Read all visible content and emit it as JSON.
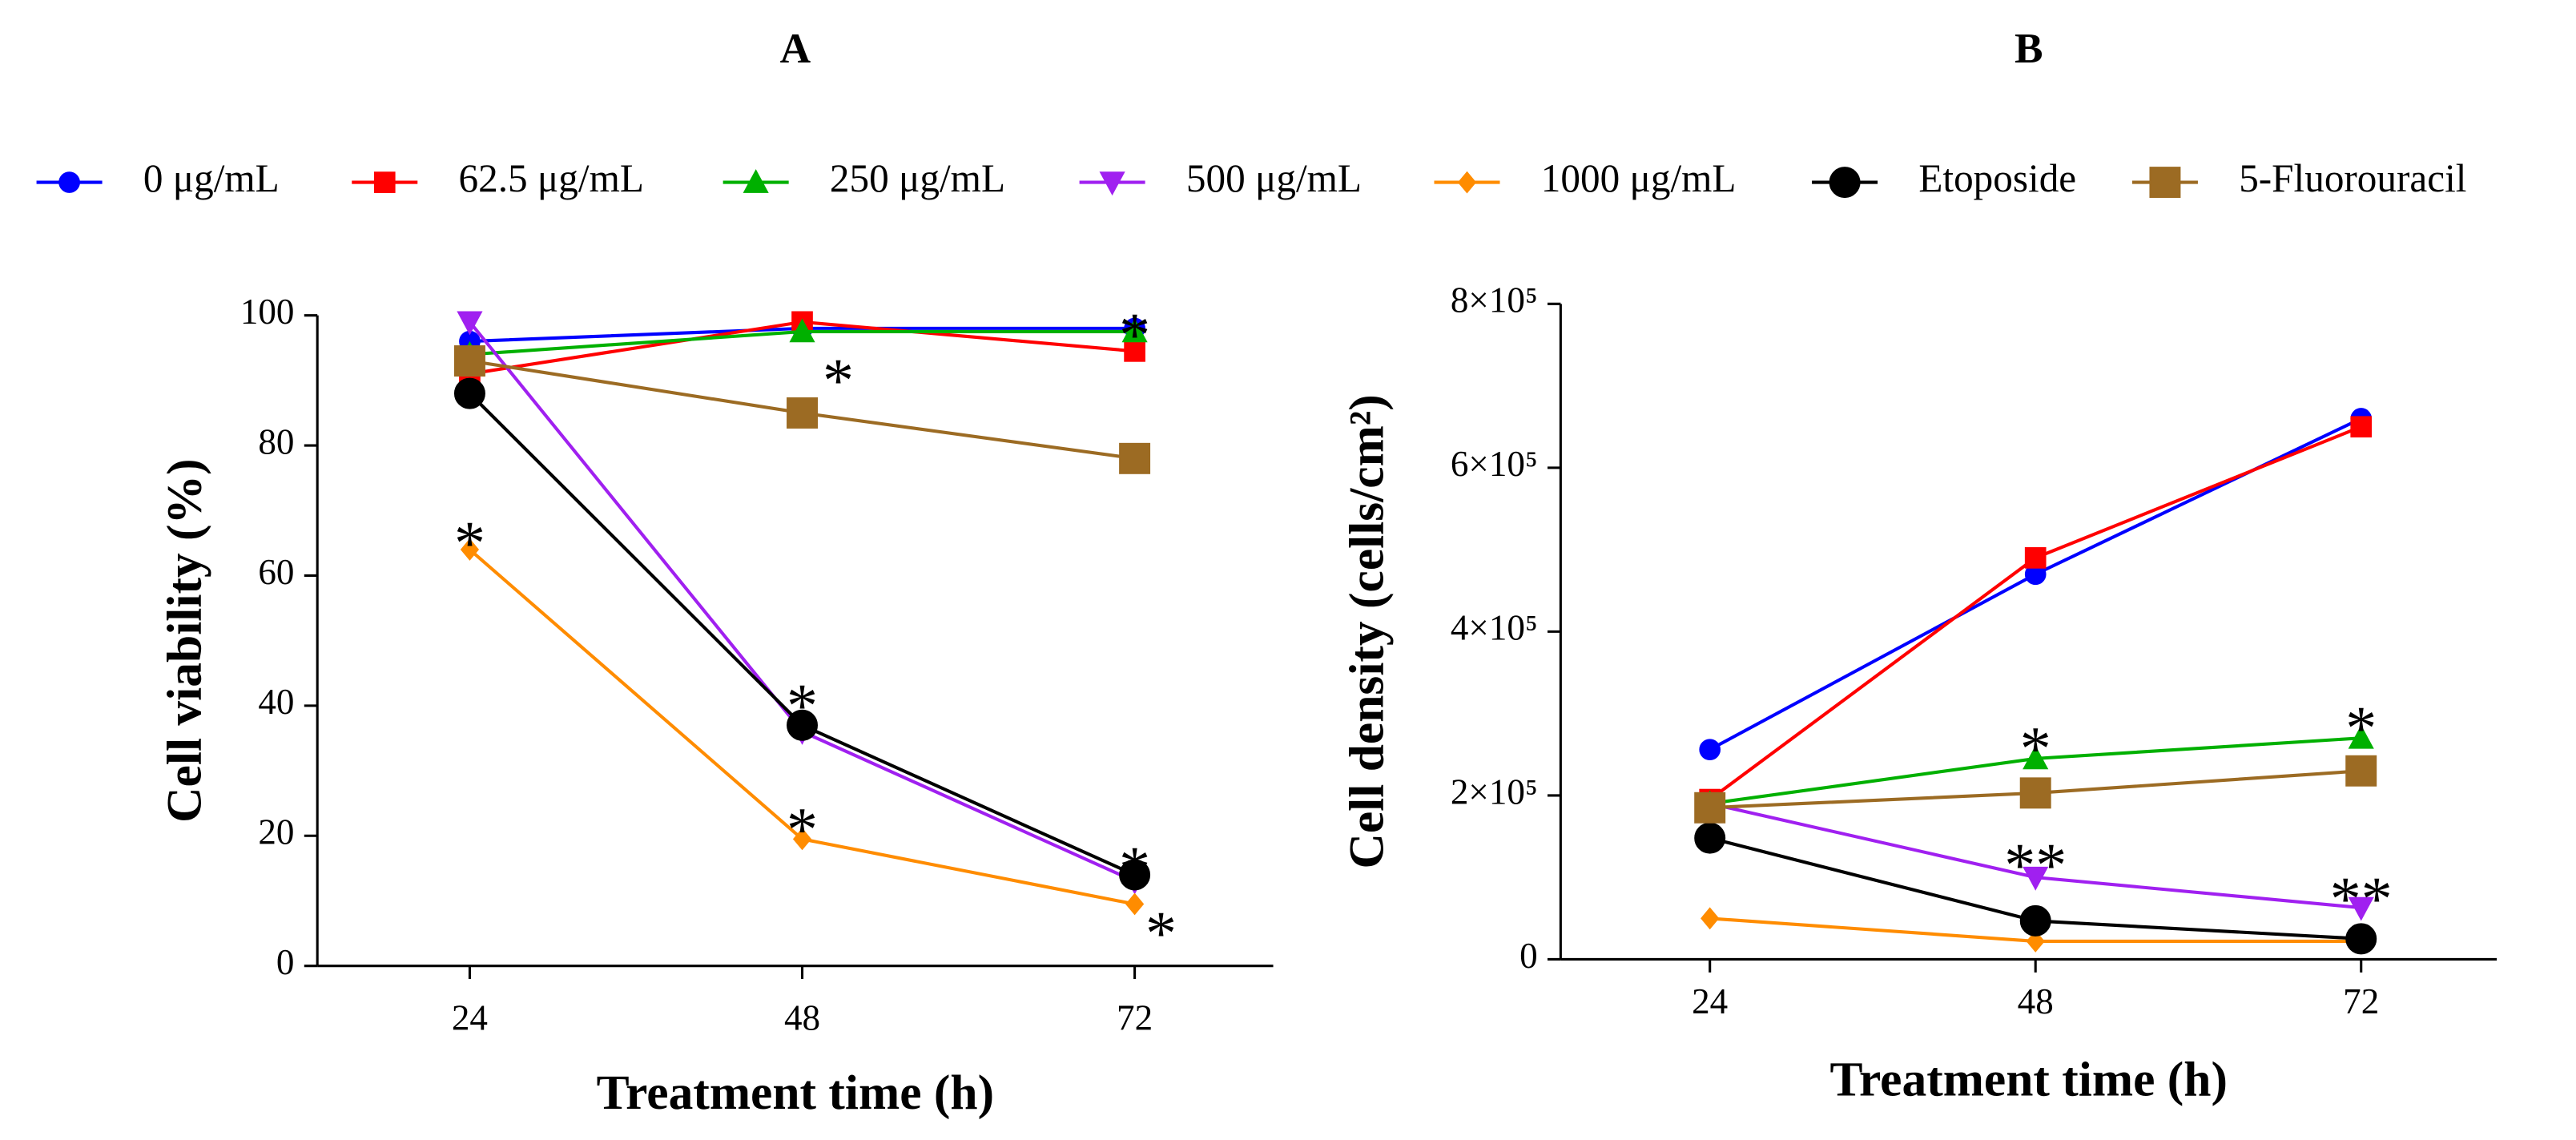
{
  "chart_data": [
    {
      "type": "line",
      "title": "A",
      "xlabel": "Treatment time (h)",
      "ylabel": "Cell viability (%)",
      "legend": "top",
      "x": [
        24,
        48,
        72
      ],
      "xlim": [
        13,
        82
      ],
      "xticks": [
        24,
        48,
        72
      ],
      "ylim": [
        0,
        100
      ],
      "yticks": [
        0,
        20,
        40,
        60,
        80,
        100
      ],
      "series": [
        {
          "name": "0 μg/mL",
          "color": "#0000ff",
          "marker": "circle",
          "values": [
            96,
            98,
            98
          ]
        },
        {
          "name": "62.5 μg/mL",
          "color": "#ff0000",
          "marker": "square",
          "values": [
            91,
            99,
            94.5
          ]
        },
        {
          "name": "250 μg/mL",
          "color": "#00b000",
          "marker": "triangle",
          "values": [
            94,
            97.5,
            97.5
          ]
        },
        {
          "name": "500 μg/mL",
          "color": "#a020f0",
          "marker": "triangle-down",
          "values": [
            99,
            36,
            13
          ]
        },
        {
          "name": "1000 μg/mL",
          "color": "#ff8c00",
          "marker": "diamond",
          "values": [
            64,
            19.5,
            9.5
          ]
        },
        {
          "name": "Etoposide",
          "color": "#000000",
          "marker": "big-circle",
          "values": [
            88,
            37,
            14
          ]
        },
        {
          "name": "5-Fluorouracil",
          "color": "#9c6b23",
          "marker": "big-square",
          "values": [
            93,
            85,
            78
          ]
        }
      ],
      "annotations": [
        {
          "text": "*",
          "x": 24,
          "y": 66
        },
        {
          "text": "*",
          "x": 50.6,
          "y": 91
        },
        {
          "text": "*",
          "x": 48,
          "y": 41
        },
        {
          "text": "*",
          "x": 48,
          "y": 22
        },
        {
          "text": "*",
          "x": 72,
          "y": 98
        },
        {
          "text": "*",
          "x": 72,
          "y": 16
        },
        {
          "text": "*",
          "x": 73.9,
          "y": 6
        }
      ]
    },
    {
      "type": "line",
      "title": "B",
      "xlabel": "Treatment time (h)",
      "ylabel": "Cell density (cells/cm²)",
      "x": [
        24,
        48,
        72
      ],
      "xlim": [
        13,
        82
      ],
      "xticks": [
        24,
        48,
        72
      ],
      "ylim": [
        0,
        800000
      ],
      "yticks": [
        0,
        {
          "value": 200000,
          "label": "2×10⁵"
        },
        {
          "value": 400000,
          "label": "4×10⁵"
        },
        {
          "value": 600000,
          "label": "6×10⁵"
        },
        {
          "value": 800000,
          "label": "8×10⁵"
        }
      ],
      "series": [
        {
          "name": "0 μg/mL",
          "color": "#0000ff",
          "marker": "circle",
          "values": [
            256000,
            470000,
            660000
          ]
        },
        {
          "name": "62.5 μg/mL",
          "color": "#ff0000",
          "marker": "square",
          "values": [
            195000,
            490000,
            650000
          ]
        },
        {
          "name": "250 μg/mL",
          "color": "#00b000",
          "marker": "triangle",
          "values": [
            190000,
            245000,
            270000
          ]
        },
        {
          "name": "500 μg/mL",
          "color": "#a020f0",
          "marker": "triangle-down",
          "values": [
            190000,
            100000,
            63000
          ]
        },
        {
          "name": "1000 μg/mL",
          "color": "#ff8c00",
          "marker": "diamond",
          "values": [
            50000,
            22000,
            22000
          ]
        },
        {
          "name": "Etoposide",
          "color": "#000000",
          "marker": "big-circle",
          "values": [
            148000,
            47000,
            25000
          ]
        },
        {
          "name": "5-Fluorouracil",
          "color": "#9c6b23",
          "marker": "big-square",
          "values": [
            185000,
            203000,
            230000
          ]
        }
      ],
      "annotations": [
        {
          "text": "*",
          "x": 48,
          "y": 265000
        },
        {
          "text": "**",
          "x": 48,
          "y": 123000
        },
        {
          "text": "*",
          "x": 72,
          "y": 290000
        },
        {
          "text": "**",
          "x": 72,
          "y": 82000
        }
      ]
    }
  ]
}
